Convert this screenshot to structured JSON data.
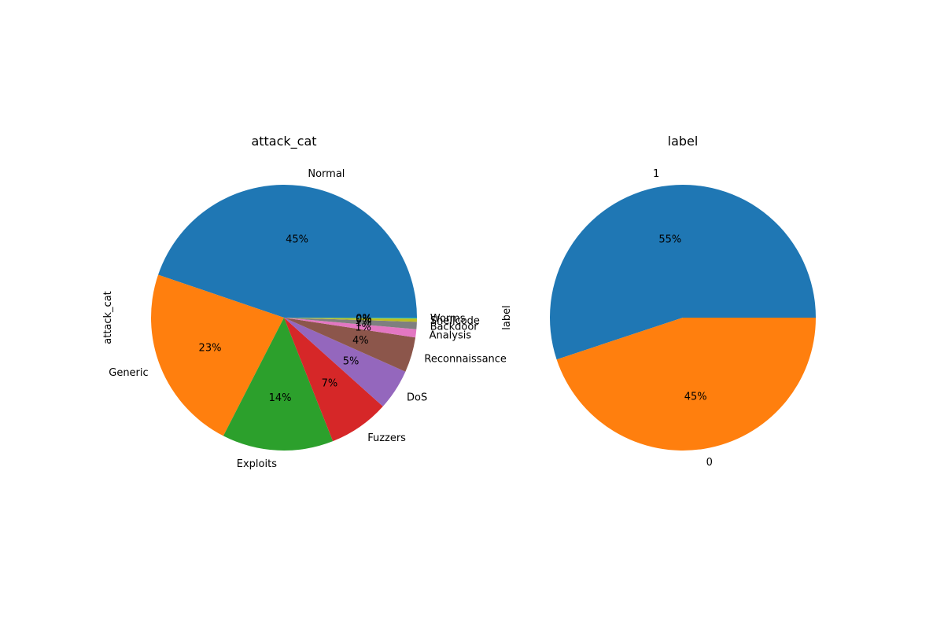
{
  "chart_data": [
    {
      "type": "pie",
      "title": "attack_cat",
      "ylabel": "attack_cat",
      "start_angle_deg": 0,
      "direction": "counterclockwise",
      "slices": [
        {
          "label": "Normal",
          "value": 45.0,
          "pct_label": "45%",
          "color": "#1f77b4"
        },
        {
          "label": "Generic",
          "value": 22.8,
          "pct_label": "23%",
          "color": "#ff7f0e"
        },
        {
          "label": "Exploits",
          "value": 13.6,
          "pct_label": "14%",
          "color": "#2ca02c"
        },
        {
          "label": "Fuzzers",
          "value": 7.4,
          "pct_label": "7%",
          "color": "#d62728"
        },
        {
          "label": "DoS",
          "value": 5.0,
          "pct_label": "5%",
          "color": "#9467bd"
        },
        {
          "label": "Reconnaissance",
          "value": 4.3,
          "pct_label": "4%",
          "color": "#8c564b"
        },
        {
          "label": "Analysis",
          "value": 1.0,
          "pct_label": "1%",
          "color": "#e377c2"
        },
        {
          "label": "Backdoor",
          "value": 0.9,
          "pct_label": "1%",
          "color": "#7f7f7f"
        },
        {
          "label": "Shellcode",
          "value": 0.4,
          "pct_label": "0%",
          "color": "#bcbd22"
        },
        {
          "label": "Worms",
          "value": 0.1,
          "pct_label": "0%",
          "color": "#17becf"
        }
      ]
    },
    {
      "type": "pie",
      "title": "label",
      "ylabel": "label",
      "start_angle_deg": 0,
      "direction": "counterclockwise",
      "slices": [
        {
          "label": "1",
          "value": 55.1,
          "pct_label": "55%",
          "color": "#1f77b4"
        },
        {
          "label": "0",
          "value": 44.9,
          "pct_label": "45%",
          "color": "#ff7f0e"
        }
      ]
    }
  ]
}
